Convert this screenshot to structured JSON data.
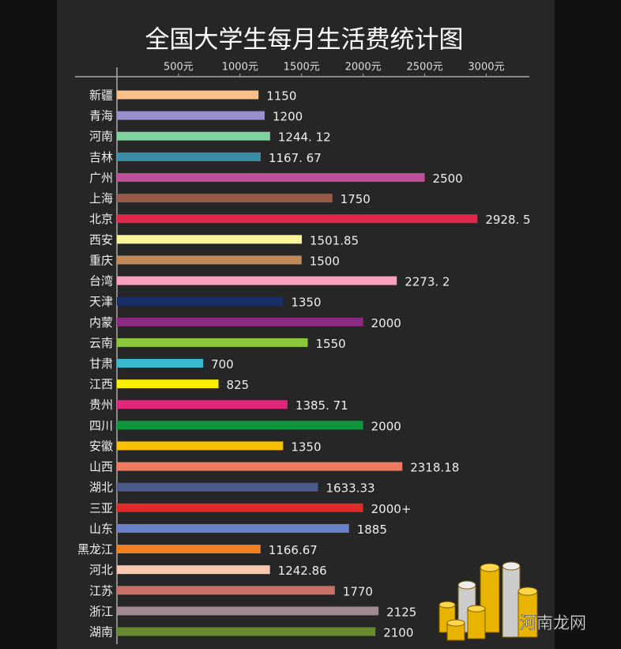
{
  "chart_data": {
    "type": "bar",
    "orientation": "horizontal",
    "title": "全国大学生每月生活费统计图",
    "categories": [
      "新疆",
      "青海",
      "河南",
      "吉林",
      "广州",
      "上海",
      "北京",
      "西安",
      "重庆",
      "台湾",
      "天津",
      "内蒙",
      "云南",
      "甘肃",
      "江西",
      "贵州",
      "四川",
      "安徽",
      "山西",
      "湖北",
      "三亚",
      "山东",
      "黑龙江",
      "河北",
      "江苏",
      "浙江",
      "湖南"
    ],
    "values": [
      1150,
      1200,
      1244.12,
      1167.67,
      2500,
      1750,
      2928.5,
      1501.85,
      1500,
      2273.2,
      1350,
      2000,
      1550,
      700,
      825,
      1385.71,
      2000,
      1350,
      2318.18,
      1633.33,
      2000,
      1885,
      1166.67,
      1242.86,
      1770,
      2125,
      2100
    ],
    "value_labels": [
      "1150",
      "1200",
      "1244. 12",
      "1167. 67",
      "2500",
      "1750",
      "2928. 5",
      "1501.85",
      "1500",
      "2273. 2",
      "1350",
      "2000",
      "1550",
      "700",
      "825",
      "1385. 71",
      "2000",
      "1350",
      "2318.18",
      "1633.33",
      "2000+",
      "1885",
      "1166.67",
      "1242.86",
      "1770",
      "2125",
      "2100"
    ],
    "colors": [
      "#f9c08a",
      "#9b8fd0",
      "#7fd19e",
      "#3a8fa6",
      "#c04f9a",
      "#9a5a48",
      "#e0294a",
      "#fdf59a",
      "#c08a5a",
      "#f8a0c0",
      "#1a2f6a",
      "#8a2a80",
      "#8ac83a",
      "#3ab8d0",
      "#f8f000",
      "#e0287a",
      "#10963a",
      "#f8c000",
      "#f07a60",
      "#4a5a8a",
      "#e02a2a",
      "#6a80c8",
      "#f08020",
      "#f8c8b0",
      "#c87068",
      "#a08a90",
      "#6a8a30"
    ],
    "xlim": [
      0,
      3350
    ],
    "xticks": [
      {
        "value": 500,
        "label": "500元"
      },
      {
        "value": 1000,
        "label": "1000元"
      },
      {
        "value": 1500,
        "label": "1500元"
      },
      {
        "value": 2000,
        "label": "2000元"
      },
      {
        "value": 2500,
        "label": "2500元"
      },
      {
        "value": 3000,
        "label": "3000元"
      }
    ],
    "grid": false
  },
  "watermark": "河南龙网"
}
